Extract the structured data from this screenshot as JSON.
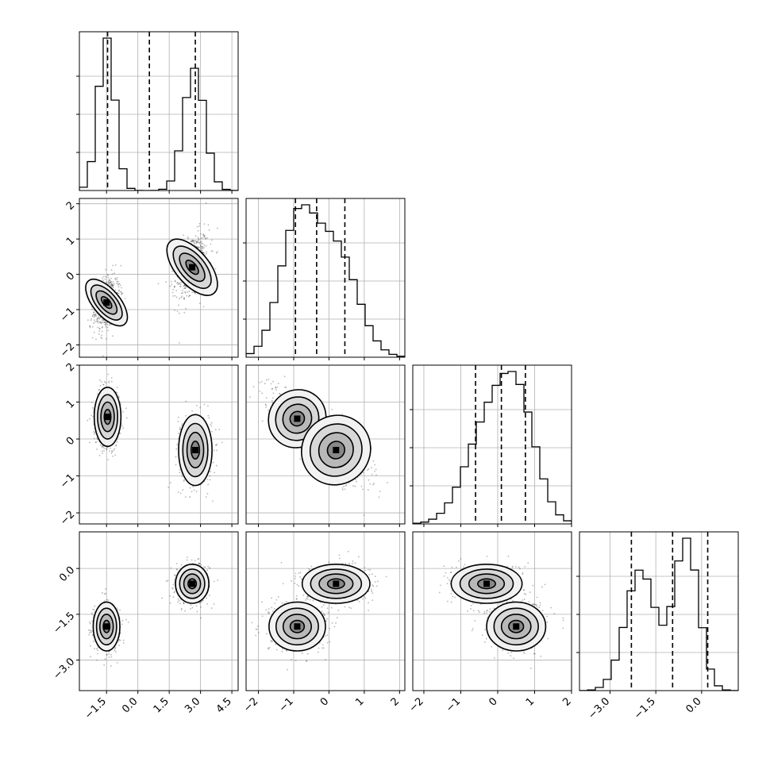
{
  "chart_data": {
    "type": "corner",
    "n_params": 4,
    "axis_ranges": [
      [
        -2.8,
        4.8
      ],
      [
        -2.35,
        2.15
      ],
      [
        -2.3,
        2.0
      ],
      [
        -4.0,
        1.2
      ]
    ],
    "ticks": [
      {
        "values": [
          -1.5,
          0.0,
          1.5,
          3.0,
          4.5
        ],
        "labels": [
          "−1.5",
          "0.0",
          "1.5",
          "3.0",
          "4.5"
        ]
      },
      {
        "values": [
          -2,
          -1,
          0,
          1,
          2
        ],
        "labels": [
          "−2",
          "−1",
          "0",
          "1",
          "2"
        ]
      },
      {
        "values": [
          -2,
          -1,
          0,
          1,
          2
        ],
        "labels": [
          "−2",
          "−1",
          "0",
          "1",
          "2"
        ]
      },
      {
        "values": [
          -3.0,
          -1.5,
          0.0
        ],
        "labels": [
          "−3.0",
          "−1.5",
          "0.0"
        ]
      }
    ],
    "quantiles": [
      [
        -1.45,
        0.55,
        2.75
      ],
      [
        -0.95,
        -0.35,
        0.45
      ],
      [
        -0.6,
        0.1,
        0.75
      ],
      [
        -2.3,
        -0.95,
        0.2
      ]
    ],
    "marginals": [
      {
        "components": [
          {
            "weight": 0.5,
            "mean": -1.5,
            "sd": 0.4
          },
          {
            "weight": 0.5,
            "mean": 2.7,
            "sd": 0.5
          }
        ]
      },
      {
        "components": [
          {
            "weight": 0.5,
            "mean": -0.9,
            "sd": 0.5
          },
          {
            "weight": 0.5,
            "mean": 0.2,
            "sd": 0.6
          }
        ]
      },
      {
        "components": [
          {
            "weight": 0.5,
            "mean": 0.55,
            "sd": 0.5
          },
          {
            "weight": 0.5,
            "mean": -0.3,
            "sd": 0.6
          }
        ]
      },
      {
        "components": [
          {
            "weight": 0.5,
            "mean": -2.0,
            "sd": 0.5
          },
          {
            "weight": 0.5,
            "mean": -0.5,
            "sd": 0.4
          }
        ]
      }
    ],
    "joint_peaks": {
      "1-0": [
        {
          "x": -1.5,
          "y": -0.8
        },
        {
          "x": 2.6,
          "y": 0.2
        }
      ],
      "2-0": [
        {
          "x": -1.45,
          "y": 0.6
        },
        {
          "x": 2.75,
          "y": -0.3
        }
      ],
      "2-1": [
        {
          "x": -0.9,
          "y": 0.55
        },
        {
          "x": 0.2,
          "y": -0.3
        }
      ],
      "3-0": [
        {
          "x": -1.5,
          "y": -1.9
        },
        {
          "x": 2.6,
          "y": -0.5
        }
      ],
      "3-1": [
        {
          "x": -0.9,
          "y": -1.9
        },
        {
          "x": 0.2,
          "y": -0.5
        }
      ],
      "3-2": [
        {
          "x": 0.5,
          "y": -1.9
        },
        {
          "x": -0.3,
          "y": -0.5
        }
      ]
    },
    "grid": true,
    "hist_bins": 20
  }
}
